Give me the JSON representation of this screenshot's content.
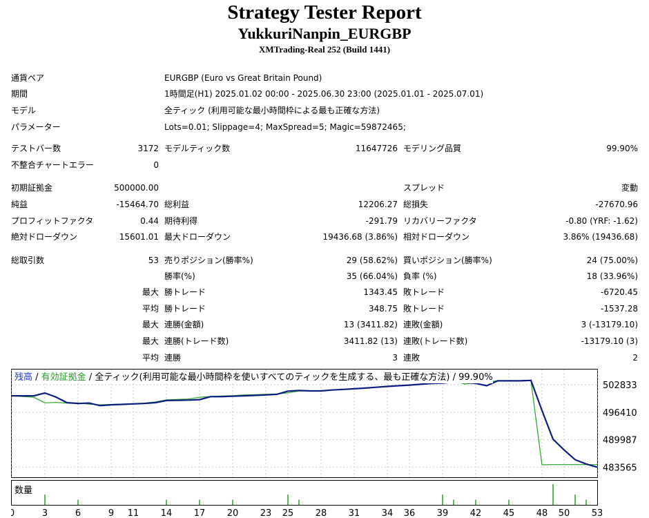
{
  "header": {
    "title": "Strategy Tester Report",
    "ea_name": "YukkuriNanpin_EURGBP",
    "server": "XMTrading-Real 252 (Build 1441)"
  },
  "settings": {
    "symbol_label": "通貨ペア",
    "symbol_value": "EURGBP (Euro vs Great Britain Pound)",
    "period_label": "期間",
    "period_value": "1時間足(H1) 2025.01.02 00:00 - 2025.06.30 23:00 (2025.01.01 - 2025.07.01)",
    "model_label": "モデル",
    "model_value": "全ティック (利用可能な最小時間枠による最も正確な方法)",
    "params_label": "パラメーター",
    "params_value": "Lots=0.01; Slippage=4; MaxSpread=5; Magic=59872465;"
  },
  "quality": {
    "bars_label": "テストバー数",
    "bars_value": "3172",
    "ticks_label": "モデルティック数",
    "ticks_value": "11647726",
    "modeling_label": "モデリング品質",
    "modeling_value": "99.90%",
    "errors_label": "不整合チャートエラー",
    "errors_value": "0"
  },
  "results": {
    "deposit_label": "初期証拠金",
    "deposit_value": "500000.00",
    "spread_label": "スプレッド",
    "spread_value": "変動",
    "net_label": "純益",
    "net_value": "-15464.70",
    "gross_profit_label": "総利益",
    "gross_profit_value": "12206.27",
    "gross_loss_label": "総損失",
    "gross_loss_value": "-27670.96",
    "pf_label": "プロフィットファクタ",
    "pf_value": "0.44",
    "expected_label": "期待利得",
    "expected_value": "-291.79",
    "recovery_label": "リカバリーファクタ",
    "recovery_value": "-0.80 (YRF: -1.62)",
    "abs_dd_label": "絶対ドローダウン",
    "abs_dd_value": "15601.01",
    "max_dd_label": "最大ドローダウン",
    "max_dd_value": "19436.68 (3.86%)",
    "rel_dd_label": "相対ドローダウン",
    "rel_dd_value": "3.86% (19436.68)"
  },
  "trades": {
    "total_label": "総取引数",
    "total_value": "53",
    "short_label": "売りポジション(勝率%)",
    "short_value": "29 (58.62%)",
    "long_label": "買いポジション(勝率%)",
    "long_value": "24 (75.00%)",
    "win_label": "勝率(%)",
    "win_value": "35 (66.04%)",
    "loss_label": "負率 (%)",
    "loss_value": "18 (33.96%)",
    "max_word": "最大",
    "avg_word": "平均",
    "best_label": "勝トレード",
    "best_value": "1343.45",
    "worst_label": "敗トレード",
    "worst_value": "-6720.45",
    "avg_win_label": "勝トレード",
    "avg_win_value": "348.75",
    "avg_loss_label": "敗トレード",
    "avg_loss_value": "-1537.28",
    "cons_wins_money_label": "連勝(金額)",
    "cons_wins_money_value": "13 (3411.82)",
    "cons_losses_money_label": "連敗(金額)",
    "cons_losses_money_value": "3 (-13179.10)",
    "cons_profit_label": "連勝(トレード数)",
    "cons_profit_value": "3411.82 (13)",
    "cons_loss_label": "連敗(トレード数)",
    "cons_loss_value": "-13179.10 (3)",
    "avg_cons_wins_label": "連勝",
    "avg_cons_wins_value": "3",
    "avg_cons_losses_label": "連敗",
    "avg_cons_losses_value": "2"
  },
  "legend": {
    "balance": "残高",
    "sep1": " / ",
    "equity": "有効証拠金",
    "rest": " / 全ティック(利用可能な最小時間枠を使いすべてのティックを生成する、最も正確な方法) / 99.90%",
    "volume": "数量"
  },
  "colors": {
    "balance": "#0a1e82",
    "equity": "#22a022",
    "volume": "#22a022",
    "legend_balance": "#1a3ad0",
    "legend_equity": "#22a022"
  },
  "chart_data": {
    "type": "line",
    "ylim": [
      481200,
      506400
    ],
    "ytick_values": [
      502833,
      496410,
      489987,
      483565
    ],
    "ytick_labels": [
      "502833",
      "496410",
      "489987",
      "483565"
    ],
    "xticks": [
      "0",
      "3",
      "6",
      "9",
      "11",
      "14",
      "17",
      "20",
      "23",
      "25",
      "28",
      "31",
      "34",
      "36",
      "39",
      "42",
      "45",
      "48",
      "50",
      "53"
    ],
    "xlim": [
      0,
      53
    ],
    "series": [
      {
        "name": "残高",
        "x": [
          0,
          2,
          3,
          4,
          5,
          6,
          7,
          8,
          9,
          10,
          11,
          12,
          13,
          14,
          15,
          16,
          17,
          18,
          19,
          20,
          21,
          22,
          23,
          24,
          25,
          26,
          27,
          28,
          29,
          30,
          31,
          32,
          33,
          34,
          35,
          36,
          37,
          38,
          39,
          40,
          41,
          42,
          43,
          44,
          45,
          46,
          47,
          48,
          49,
          50,
          51,
          52,
          53
        ],
        "y": [
          500250,
          500250,
          500900,
          499950,
          498650,
          498450,
          498550,
          497950,
          498150,
          498250,
          498350,
          498450,
          498650,
          499150,
          499200,
          499250,
          499350,
          500050,
          500050,
          500150,
          500250,
          500350,
          500450,
          500600,
          501350,
          501500,
          501400,
          501400,
          501600,
          501750,
          501900,
          502050,
          502250,
          502450,
          502600,
          502750,
          502950,
          503150,
          503200,
          503450,
          503350,
          503150,
          502600,
          503750,
          503750,
          503750,
          503850,
          496800,
          490100,
          487600,
          485300,
          484300,
          483565
        ]
      },
      {
        "name": "有効証拠金",
        "x": [
          0,
          2,
          3,
          4,
          5,
          6,
          7,
          8,
          9,
          10,
          11,
          12,
          13,
          14,
          15,
          16,
          17,
          18,
          19,
          20,
          21,
          22,
          23,
          24,
          25,
          26,
          27,
          28,
          29,
          30,
          31,
          32,
          33,
          34,
          35,
          36,
          37,
          38,
          39,
          40,
          41,
          42,
          43,
          44,
          45,
          46,
          47,
          48,
          49,
          50,
          51,
          52,
          53
        ],
        "y": [
          500250,
          499900,
          498600,
          498700,
          498550,
          498600,
          498300,
          498150,
          498250,
          498300,
          498400,
          498550,
          498800,
          499300,
          499400,
          499500,
          499900,
          500100,
          500200,
          500300,
          500450,
          500500,
          500600,
          500650,
          500950,
          501350,
          501400,
          501450,
          501600,
          501750,
          501900,
          502100,
          502250,
          502450,
          502600,
          502800,
          502950,
          503050,
          503200,
          503700,
          503000,
          503350,
          503400,
          503800,
          503800,
          503800,
          503850,
          484100,
          484150,
          484150,
          484150,
          484150,
          484150
        ]
      }
    ],
    "volume": {
      "name": "数量",
      "x": [
        3,
        6,
        14,
        17,
        20,
        25,
        26,
        39,
        40,
        42,
        45,
        49,
        51,
        52
      ],
      "values": [
        1,
        0.5,
        0.5,
        0.5,
        0.5,
        1,
        0.5,
        1,
        0.5,
        0.5,
        0.5,
        2,
        1,
        0.5
      ]
    }
  }
}
